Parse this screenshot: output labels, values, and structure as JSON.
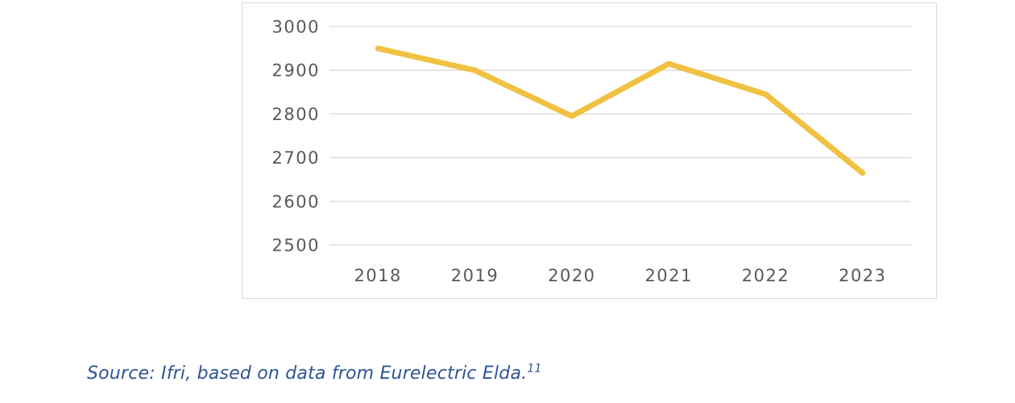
{
  "page": {
    "background": "#ffffff"
  },
  "source_note": {
    "text": "Source: Ifri, based on data from Eurelectric Elda.",
    "footnote": "11",
    "color": "#2F5496"
  },
  "chart_data": {
    "type": "line",
    "categories": [
      "2018",
      "2019",
      "2020",
      "2021",
      "2022",
      "2023"
    ],
    "values": [
      2950,
      2900,
      2795,
      2915,
      2845,
      2665
    ],
    "title": "",
    "xlabel": "",
    "ylabel": "",
    "ylim": [
      2500,
      3000
    ],
    "yticks": [
      2500,
      2600,
      2700,
      2800,
      2900,
      3000
    ],
    "grid": true,
    "legend": false,
    "line_color": "#F0C142",
    "line_width": 7,
    "gridline_color": "#D9D9D9",
    "border_color": "#D9D9D9",
    "tick_label_color": "#595959"
  }
}
